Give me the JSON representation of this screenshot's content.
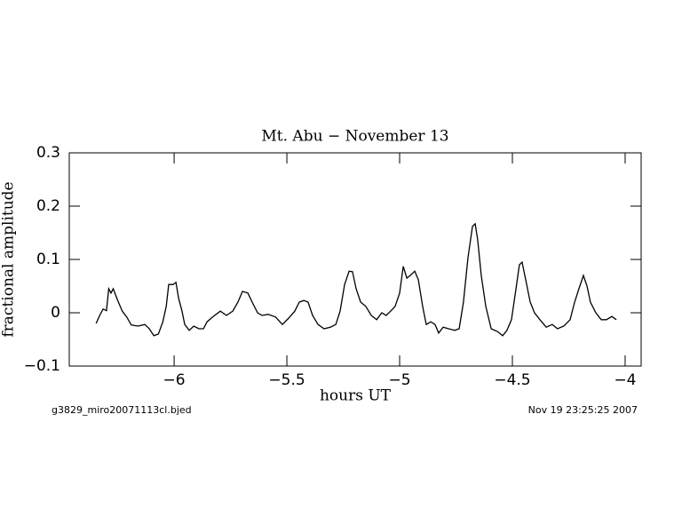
{
  "chart_data": {
    "type": "line",
    "title": "Mt. Abu − November 13",
    "xlabel": "hours UT",
    "ylabel": "fractional amplitude",
    "footer_left": "g3829_miro20071113cl.bjed",
    "footer_right": "Nov 19 23:25:25 2007",
    "xlim": [
      -6.465,
      -3.929
    ],
    "ylim": [
      -0.1,
      0.3
    ],
    "xticks": [
      {
        "value": -6,
        "label": "−6"
      },
      {
        "value": -5.5,
        "label": "−5.5"
      },
      {
        "value": -5,
        "label": "−5"
      },
      {
        "value": -4.5,
        "label": "−4.5"
      },
      {
        "value": -4,
        "label": "−4"
      }
    ],
    "yticks": [
      {
        "value": -0.1,
        "label": "−0.1"
      },
      0,
      0.1,
      0.2,
      0.3
    ],
    "series": [
      {
        "color": "#000000",
        "x": [
          -6.346,
          -6.33,
          -6.315,
          -6.3,
          -6.29,
          -6.28,
          -6.27,
          -6.25,
          -6.23,
          -6.21,
          -6.19,
          -6.16,
          -6.13,
          -6.11,
          -6.09,
          -6.07,
          -6.05,
          -6.035,
          -6.024,
          -6.004,
          -5.992,
          -5.98,
          -5.965,
          -5.953,
          -5.933,
          -5.913,
          -5.89,
          -5.87,
          -5.854,
          -5.827,
          -5.795,
          -5.768,
          -5.74,
          -5.717,
          -5.697,
          -5.673,
          -5.654,
          -5.63,
          -5.61,
          -5.583,
          -5.55,
          -5.52,
          -5.492,
          -5.465,
          -5.445,
          -5.425,
          -5.406,
          -5.386,
          -5.362,
          -5.335,
          -5.307,
          -5.283,
          -5.264,
          -5.244,
          -5.224,
          -5.209,
          -5.193,
          -5.173,
          -5.15,
          -5.126,
          -5.102,
          -5.079,
          -5.06,
          -5.04,
          -5.02,
          -5.0,
          -4.984,
          -4.968,
          -4.953,
          -4.933,
          -4.917,
          -4.898,
          -4.882,
          -4.862,
          -4.843,
          -4.827,
          -4.807,
          -4.783,
          -4.756,
          -4.736,
          -4.717,
          -4.697,
          -4.677,
          -4.665,
          -4.654,
          -4.638,
          -4.618,
          -4.594,
          -4.567,
          -4.543,
          -4.524,
          -4.504,
          -4.484,
          -4.469,
          -4.457,
          -4.441,
          -4.421,
          -4.402,
          -4.378,
          -4.35,
          -4.323,
          -4.3,
          -4.272,
          -4.244,
          -4.224,
          -4.205,
          -4.185,
          -4.169,
          -4.154,
          -4.13,
          -4.106,
          -4.083,
          -4.059,
          -4.039
        ],
        "values": [
          -0.02,
          -0.005,
          0.007,
          0.004,
          0.045,
          0.037,
          0.045,
          0.023,
          0.003,
          -0.008,
          -0.023,
          -0.025,
          -0.022,
          -0.03,
          -0.043,
          -0.04,
          -0.017,
          0.012,
          0.053,
          0.053,
          0.057,
          0.027,
          0.003,
          -0.022,
          -0.033,
          -0.025,
          -0.03,
          -0.03,
          -0.017,
          -0.007,
          0.003,
          -0.005,
          0.003,
          0.02,
          0.04,
          0.037,
          0.02,
          0,
          -0.005,
          -0.003,
          -0.008,
          -0.022,
          -0.01,
          0.003,
          0.02,
          0.023,
          0.02,
          -0.005,
          -0.022,
          -0.03,
          -0.027,
          -0.022,
          0.003,
          0.053,
          0.078,
          0.077,
          0.045,
          0.02,
          0.012,
          -0.005,
          -0.013,
          0,
          -0.005,
          0.003,
          0.012,
          0.037,
          0.087,
          0.065,
          0.07,
          0.078,
          0.062,
          0.012,
          -0.022,
          -0.017,
          -0.022,
          -0.038,
          -0.027,
          -0.03,
          -0.033,
          -0.03,
          0.02,
          0.103,
          0.162,
          0.167,
          0.137,
          0.07,
          0.012,
          -0.03,
          -0.035,
          -0.043,
          -0.033,
          -0.013,
          0.045,
          0.09,
          0.095,
          0.062,
          0.02,
          0,
          -0.013,
          -0.027,
          -0.022,
          -0.03,
          -0.025,
          -0.013,
          0.02,
          0.045,
          0.07,
          0.05,
          0.02,
          0,
          -0.013,
          -0.013,
          -0.007,
          -0.013
        ]
      }
    ]
  }
}
